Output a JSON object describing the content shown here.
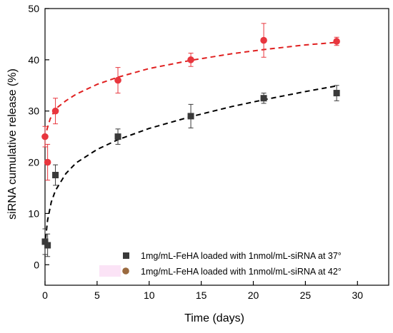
{
  "chart_data": {
    "type": "scatter",
    "xlabel": "Time (days)",
    "ylabel": "siRNA cumulative release (%)",
    "xlim": [
      0,
      33
    ],
    "ylim": [
      -4,
      50
    ],
    "xticks": [
      0,
      5,
      10,
      15,
      20,
      25,
      30
    ],
    "yticks": [
      0,
      10,
      20,
      30,
      40,
      50
    ],
    "legend_position": "bottom-right",
    "series": [
      {
        "name": "1mg/mL-FeHA loaded with 1nmol/mL-siRNA at 37°",
        "color": "#3a3a3a",
        "fit_color": "#000000",
        "marker": "square",
        "x": [
          0,
          0.25,
          1,
          7,
          14,
          21,
          28
        ],
        "y": [
          4.5,
          3.8,
          17.5,
          25.0,
          29.0,
          32.5,
          33.5
        ],
        "err": [
          2.5,
          2.2,
          2.0,
          1.5,
          2.3,
          1.0,
          1.5
        ],
        "fit": [
          [
            0.05,
            5.0
          ],
          [
            0.25,
            8.7
          ],
          [
            0.6,
            12.2
          ],
          [
            1,
            14.5
          ],
          [
            2,
            17.8
          ],
          [
            3,
            19.9
          ],
          [
            5,
            22.5
          ],
          [
            7,
            24.4
          ],
          [
            10,
            26.6
          ],
          [
            14,
            28.9
          ],
          [
            18,
            30.9
          ],
          [
            21,
            32.2
          ],
          [
            25,
            33.8
          ],
          [
            28,
            34.9
          ]
        ]
      },
      {
        "name": "1mg/mL-FeHA loaded with 1nmol/mL-siRNA at 42°",
        "color": "#e8363e",
        "fit_color": "#e02020",
        "marker": "circle",
        "x": [
          0,
          0.25,
          1,
          7,
          14,
          21,
          28
        ],
        "y": [
          25.0,
          20.0,
          30.0,
          36.0,
          40.0,
          43.8,
          43.6
        ],
        "err": [
          2.0,
          3.5,
          2.5,
          2.5,
          1.3,
          3.3,
          0.8
        ],
        "fit": [
          [
            0,
            24.6
          ],
          [
            0.2,
            26.5
          ],
          [
            0.5,
            28.5
          ],
          [
            1,
            30.4
          ],
          [
            2,
            32.0
          ],
          [
            3,
            33.3
          ],
          [
            5,
            35.2
          ],
          [
            7,
            36.6
          ],
          [
            10,
            38.3
          ],
          [
            14,
            39.9
          ],
          [
            18,
            41.2
          ],
          [
            21,
            42.0
          ],
          [
            25,
            42.9
          ],
          [
            28,
            43.4
          ]
        ]
      }
    ]
  }
}
